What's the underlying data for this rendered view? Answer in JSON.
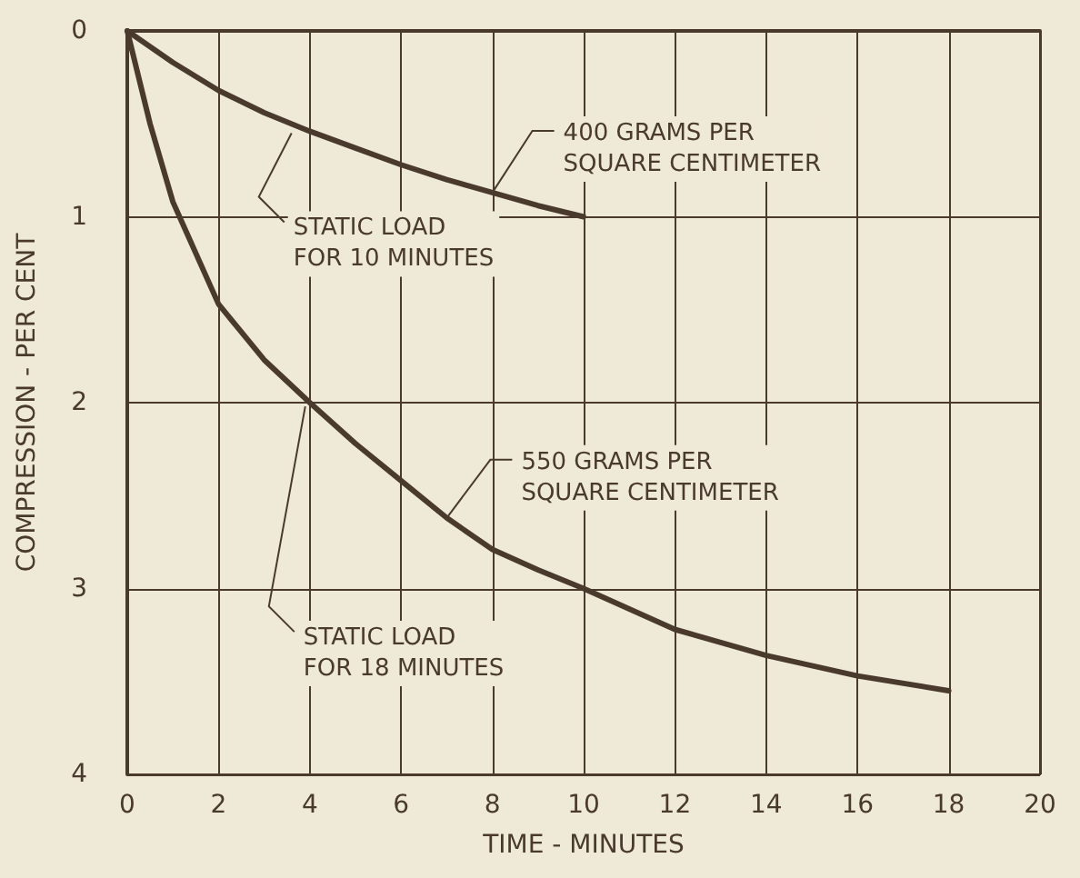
{
  "chart_data": {
    "type": "line",
    "xlabel": "TIME - MINUTES",
    "ylabel": "COMPRESSION - PER CENT",
    "xlim": [
      0,
      20
    ],
    "xticks": [
      0,
      2,
      4,
      6,
      8,
      10,
      12,
      14,
      16,
      18,
      20
    ],
    "ylim": [
      4,
      0
    ],
    "yticks": [
      0,
      1,
      2,
      3,
      4
    ],
    "grid": true,
    "marker": "none",
    "line_style": "solid",
    "series": [
      {
        "name": "400 GRAMS PER\nSQUARE CENTIMETER",
        "color": "#4a3a2e",
        "x": [
          0,
          1,
          2,
          3,
          4,
          5,
          6,
          7,
          8,
          9,
          10
        ],
        "values": [
          0,
          0.17,
          0.32,
          0.44,
          0.54,
          0.63,
          0.72,
          0.8,
          0.87,
          0.94,
          1.0
        ]
      },
      {
        "name": "550 GRAMS PER\nSQUARE CENTIMETER",
        "color": "#4a3a2e",
        "x": [
          0,
          0.5,
          1,
          2,
          3,
          4,
          5,
          6,
          7,
          8,
          9,
          10,
          12,
          14,
          16,
          18
        ],
        "values": [
          0,
          0.5,
          0.92,
          1.47,
          1.77,
          2.0,
          2.22,
          2.42,
          2.62,
          2.79,
          2.9,
          3.0,
          3.22,
          3.36,
          3.47,
          3.55
        ]
      }
    ],
    "annotations": [
      {
        "text": "STATIC LOAD\nFOR 10 MINUTES",
        "x": 3.6,
        "y": 0.55
      },
      {
        "text": "STATIC LOAD\nFOR 18 MINUTES",
        "x": 3.9,
        "y": 2.02
      }
    ]
  }
}
